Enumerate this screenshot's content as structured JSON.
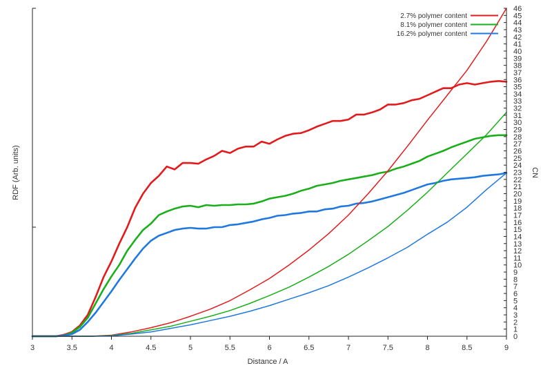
{
  "chart_data": {
    "type": "line",
    "xlabel": "Distance / A",
    "ylabel_left": "RDF (Arb. units)",
    "ylabel_right": "CN",
    "xlim": [
      3,
      9
    ],
    "x_ticks": [
      "3",
      "3.5",
      "4",
      "4.5",
      "5",
      "5.5",
      "6",
      "6.5",
      "7",
      "7.5",
      "8",
      "8.5",
      "9"
    ],
    "ylim_right": [
      0,
      46
    ],
    "ylim_left": [
      0,
      46
    ],
    "left_tick_values": [
      0,
      15.3,
      46
    ],
    "legend_position": "top-right",
    "legend": [
      {
        "label": "2.7% polymer content",
        "color": "#e31a1c"
      },
      {
        "label": "8.1% polymer content",
        "color": "#1aaf1a"
      },
      {
        "label": "16.2% polymer content",
        "color": "#1f78e0"
      }
    ],
    "series": [
      {
        "name": "2.7% polymer content",
        "kind": "rdf",
        "color": "#e31a1c",
        "x": [
          3.0,
          3.3,
          3.4,
          3.5,
          3.6,
          3.7,
          3.8,
          3.9,
          4.0,
          4.1,
          4.2,
          4.3,
          4.4,
          4.5,
          4.6,
          4.7,
          4.8,
          4.9,
          5.0,
          5.1,
          5.2,
          5.3,
          5.4,
          5.5,
          5.6,
          5.7,
          5.8,
          5.9,
          6.0,
          6.1,
          6.2,
          6.3,
          6.4,
          6.5,
          6.6,
          6.7,
          6.8,
          6.9,
          7.0,
          7.1,
          7.2,
          7.3,
          7.4,
          7.5,
          7.6,
          7.7,
          7.8,
          7.9,
          8.0,
          8.1,
          8.2,
          8.3,
          8.4,
          8.5,
          8.6,
          8.7,
          8.8,
          8.9,
          9.0
        ],
        "y": [
          0,
          0,
          0.2,
          0.6,
          1.5,
          3,
          5.5,
          8.3,
          10.5,
          13,
          15.3,
          18,
          20,
          21.5,
          22.5,
          23.8,
          23.4,
          24.3,
          24.3,
          24.2,
          24.8,
          25.3,
          26,
          25.7,
          26.3,
          26.6,
          26.6,
          27.3,
          27,
          27.6,
          28.1,
          28.4,
          28.5,
          28.9,
          29.4,
          29.8,
          30.2,
          30.2,
          30.4,
          31.1,
          31.1,
          31.4,
          31.8,
          32.5,
          32.5,
          32.7,
          33.1,
          33.3,
          33.8,
          34.3,
          34.8,
          34.8,
          35.3,
          35.5,
          35.3,
          35.5,
          35.7,
          35.8,
          35.7
        ]
      },
      {
        "name": "8.1% polymer content",
        "kind": "rdf",
        "color": "#1aaf1a",
        "x": [
          3.0,
          3.3,
          3.4,
          3.5,
          3.6,
          3.7,
          3.8,
          3.9,
          4.0,
          4.1,
          4.2,
          4.3,
          4.4,
          4.5,
          4.6,
          4.7,
          4.8,
          4.9,
          5.0,
          5.1,
          5.2,
          5.3,
          5.4,
          5.5,
          5.6,
          5.7,
          5.8,
          5.9,
          6.0,
          6.1,
          6.2,
          6.3,
          6.4,
          6.5,
          6.6,
          6.7,
          6.8,
          6.9,
          7.0,
          7.1,
          7.2,
          7.3,
          7.4,
          7.5,
          7.6,
          7.7,
          7.8,
          7.9,
          8.0,
          8.1,
          8.2,
          8.3,
          8.4,
          8.5,
          8.6,
          8.7,
          8.8,
          8.9,
          9.0
        ],
        "y": [
          0,
          0,
          0.1,
          0.5,
          1.3,
          2.6,
          4.6,
          6.6,
          8.4,
          10,
          12,
          13.5,
          14.9,
          15.8,
          17,
          17.5,
          17.9,
          18.2,
          18.3,
          18.1,
          18.4,
          18.3,
          18.4,
          18.4,
          18.5,
          18.5,
          18.6,
          18.9,
          19.3,
          19.5,
          19.7,
          20,
          20.4,
          20.7,
          21.1,
          21.3,
          21.5,
          21.8,
          22,
          22.2,
          22.4,
          22.6,
          22.9,
          23.1,
          23.5,
          23.8,
          24.2,
          24.6,
          25.2,
          25.6,
          26,
          26.5,
          26.9,
          27.3,
          27.7,
          27.9,
          28.1,
          28.2,
          28.2
        ]
      },
      {
        "name": "16.2% polymer content",
        "kind": "rdf",
        "color": "#1f78e0",
        "x": [
          3.0,
          3.3,
          3.4,
          3.5,
          3.6,
          3.7,
          3.8,
          3.9,
          4.0,
          4.1,
          4.2,
          4.3,
          4.4,
          4.5,
          4.6,
          4.7,
          4.8,
          4.9,
          5.0,
          5.1,
          5.2,
          5.3,
          5.4,
          5.5,
          5.6,
          5.7,
          5.8,
          5.9,
          6.0,
          6.1,
          6.2,
          6.3,
          6.4,
          6.5,
          6.6,
          6.7,
          6.8,
          6.9,
          7.0,
          7.1,
          7.2,
          7.3,
          7.4,
          7.5,
          7.6,
          7.7,
          7.8,
          7.9,
          8.0,
          8.1,
          8.2,
          8.3,
          8.4,
          8.5,
          8.6,
          8.7,
          8.8,
          8.9,
          9.0
        ],
        "y": [
          0,
          0,
          0.1,
          0.3,
          0.9,
          2,
          3.3,
          4.8,
          6.3,
          7.9,
          9.4,
          10.9,
          12.3,
          13.4,
          14.1,
          14.5,
          14.9,
          15.1,
          15.2,
          15.1,
          15.1,
          15.3,
          15.3,
          15.6,
          15.7,
          15.9,
          16.1,
          16.4,
          16.6,
          16.9,
          17,
          17.2,
          17.3,
          17.5,
          17.5,
          17.8,
          17.9,
          18.2,
          18.3,
          18.6,
          18.7,
          18.9,
          19.2,
          19.5,
          19.8,
          20.1,
          20.5,
          20.9,
          21.3,
          21.5,
          21.8,
          22,
          22.1,
          22.2,
          22.3,
          22.5,
          22.6,
          22.7,
          22.9
        ]
      },
      {
        "name": "2.7% polymer content",
        "kind": "cn",
        "color": "#e31a1c",
        "x": [
          3.0,
          3.5,
          3.75,
          4.0,
          4.25,
          4.5,
          4.75,
          5.0,
          5.25,
          5.5,
          5.75,
          6.0,
          6.25,
          6.5,
          6.75,
          7.0,
          7.25,
          7.5,
          7.75,
          8.0,
          8.25,
          8.5,
          8.75,
          9.0
        ],
        "y": [
          0,
          0,
          0,
          0.15,
          0.6,
          1.2,
          1.9,
          2.8,
          3.8,
          5,
          6.5,
          8.1,
          10,
          12.1,
          14.4,
          17,
          20,
          23.2,
          26.7,
          30.3,
          33.8,
          37.3,
          41.4,
          46
        ]
      },
      {
        "name": "8.1% polymer content",
        "kind": "cn",
        "color": "#1aaf1a",
        "x": [
          3.0,
          3.5,
          3.75,
          4.0,
          4.25,
          4.5,
          4.75,
          5.0,
          5.25,
          5.5,
          5.75,
          6.0,
          6.25,
          6.5,
          6.75,
          7.0,
          7.25,
          7.5,
          7.75,
          8.0,
          8.25,
          8.5,
          8.75,
          9.0
        ],
        "y": [
          0,
          0,
          0,
          0.1,
          0.4,
          0.9,
          1.4,
          2.1,
          2.8,
          3.6,
          4.6,
          5.7,
          6.9,
          8.3,
          9.8,
          11.5,
          13.4,
          15.4,
          17.7,
          20.2,
          22.9,
          25.6,
          28.3,
          31.4
        ]
      },
      {
        "name": "16.2% polymer content",
        "kind": "cn",
        "color": "#1f78e0",
        "x": [
          3.0,
          3.5,
          3.75,
          4.0,
          4.25,
          4.5,
          4.75,
          5.0,
          5.25,
          5.5,
          5.75,
          6.0,
          6.25,
          6.5,
          6.75,
          7.0,
          7.25,
          7.5,
          7.75,
          8.0,
          8.25,
          8.5,
          8.75,
          9.0
        ],
        "y": [
          0,
          0,
          0,
          0.05,
          0.3,
          0.6,
          1.1,
          1.6,
          2.2,
          2.8,
          3.5,
          4.3,
          5.2,
          6.1,
          7.1,
          8.3,
          9.6,
          11,
          12.5,
          14.3,
          16,
          18.1,
          20.6,
          22.9
        ]
      }
    ]
  }
}
